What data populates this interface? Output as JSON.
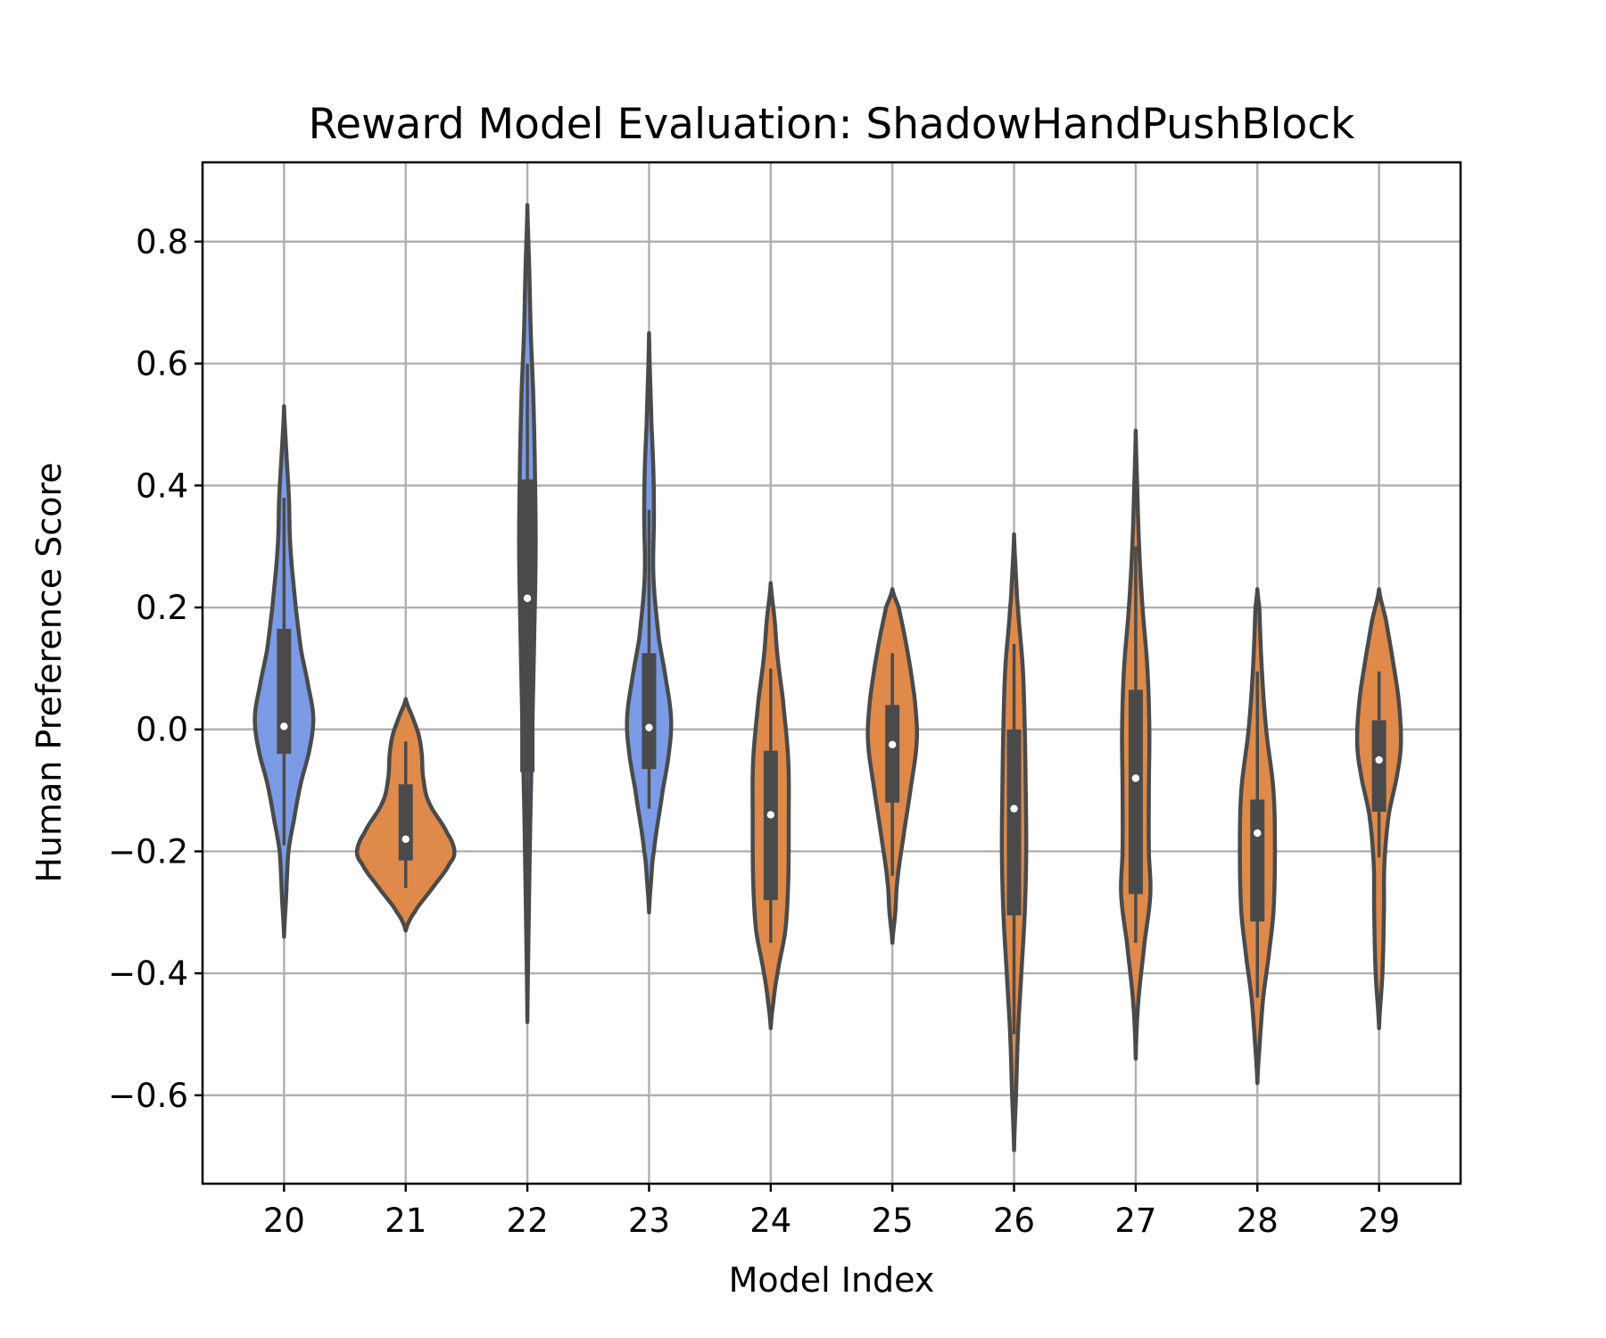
{
  "chart_data": {
    "type": "violin",
    "title": "Reward Model Evaluation: ShadowHandPushBlock",
    "xlabel": "Model Index",
    "ylabel": "Human Preference Score",
    "ylim": [
      -0.745,
      0.93
    ],
    "yticks": [
      -0.6,
      -0.4,
      -0.2,
      0.0,
      0.2,
      0.4,
      0.6,
      0.8
    ],
    "ytick_labels": [
      "−0.6",
      "−0.4",
      "−0.2",
      "0.0",
      "0.2",
      "0.4",
      "0.6",
      "0.8"
    ],
    "grid": true,
    "colors": {
      "blue": "#7b9be6",
      "orange": "#df8a4a",
      "inner": "#4a4a4a"
    },
    "categories": [
      "20",
      "21",
      "22",
      "23",
      "24",
      "25",
      "26",
      "27",
      "28",
      "29"
    ],
    "series": [
      {
        "category": "20",
        "color": "blue",
        "range": [
          -0.34,
          0.53
        ],
        "whisker": [
          -0.19,
          0.38
        ],
        "q1": -0.04,
        "median": 0.005,
        "q3": 0.165,
        "profile": [
          [
            -0.34,
            0.0
          ],
          [
            -0.28,
            0.04
          ],
          [
            -0.2,
            0.09
          ],
          [
            -0.15,
            0.2
          ],
          [
            -0.09,
            0.34
          ],
          [
            -0.03,
            0.53
          ],
          [
            0.02,
            0.6
          ],
          [
            0.07,
            0.5
          ],
          [
            0.13,
            0.35
          ],
          [
            0.2,
            0.24
          ],
          [
            0.3,
            0.13
          ],
          [
            0.38,
            0.1
          ],
          [
            0.45,
            0.05
          ],
          [
            0.53,
            0.0
          ]
        ]
      },
      {
        "category": "21",
        "color": "orange",
        "range": [
          -0.33,
          0.05
        ],
        "whisker": [
          -0.26,
          -0.02
        ],
        "q1": -0.215,
        "median": -0.18,
        "q3": -0.09,
        "profile": [
          [
            -0.33,
            0.0
          ],
          [
            -0.3,
            0.18
          ],
          [
            -0.26,
            0.55
          ],
          [
            -0.22,
            0.9
          ],
          [
            -0.2,
            1.0
          ],
          [
            -0.17,
            0.85
          ],
          [
            -0.12,
            0.48
          ],
          [
            -0.08,
            0.36
          ],
          [
            -0.04,
            0.33
          ],
          [
            -0.01,
            0.27
          ],
          [
            0.02,
            0.14
          ],
          [
            0.05,
            0.0
          ]
        ]
      },
      {
        "category": "22",
        "color": "blue",
        "range": [
          -0.48,
          0.86
        ],
        "whisker": [
          -0.23,
          0.6
        ],
        "q1": -0.07,
        "median": 0.215,
        "q3": 0.41,
        "profile": [
          [
            -0.48,
            0.0
          ],
          [
            -0.3,
            0.03
          ],
          [
            -0.15,
            0.06
          ],
          [
            0.0,
            0.1
          ],
          [
            0.15,
            0.14
          ],
          [
            0.3,
            0.17
          ],
          [
            0.45,
            0.15
          ],
          [
            0.55,
            0.12
          ],
          [
            0.65,
            0.07
          ],
          [
            0.75,
            0.04
          ],
          [
            0.86,
            0.0
          ]
        ]
      },
      {
        "category": "23",
        "color": "blue",
        "range": [
          -0.3,
          0.65
        ],
        "whisker": [
          -0.13,
          0.36
        ],
        "q1": -0.065,
        "median": 0.003,
        "q3": 0.125,
        "profile": [
          [
            -0.3,
            0.0
          ],
          [
            -0.25,
            0.04
          ],
          [
            -0.2,
            0.1
          ],
          [
            -0.1,
            0.28
          ],
          [
            -0.03,
            0.42
          ],
          [
            0.02,
            0.45
          ],
          [
            0.08,
            0.35
          ],
          [
            0.15,
            0.2
          ],
          [
            0.25,
            0.09
          ],
          [
            0.35,
            0.1
          ],
          [
            0.42,
            0.09
          ],
          [
            0.5,
            0.05
          ],
          [
            0.65,
            0.0
          ]
        ]
      },
      {
        "category": "24",
        "color": "orange",
        "range": [
          -0.49,
          0.24
        ],
        "whisker": [
          -0.35,
          0.1
        ],
        "q1": -0.28,
        "median": -0.14,
        "q3": -0.035,
        "profile": [
          [
            -0.49,
            0.0
          ],
          [
            -0.45,
            0.05
          ],
          [
            -0.4,
            0.14
          ],
          [
            -0.33,
            0.3
          ],
          [
            -0.25,
            0.36
          ],
          [
            -0.15,
            0.37
          ],
          [
            -0.05,
            0.36
          ],
          [
            0.05,
            0.25
          ],
          [
            0.12,
            0.14
          ],
          [
            0.18,
            0.08
          ],
          [
            0.24,
            0.0
          ]
        ]
      },
      {
        "category": "25",
        "color": "orange",
        "range": [
          -0.35,
          0.23
        ],
        "whisker": [
          -0.24,
          0.125
        ],
        "q1": -0.12,
        "median": -0.025,
        "q3": 0.04,
        "profile": [
          [
            -0.35,
            0.0
          ],
          [
            -0.3,
            0.06
          ],
          [
            -0.25,
            0.1
          ],
          [
            -0.18,
            0.22
          ],
          [
            -0.1,
            0.37
          ],
          [
            -0.02,
            0.5
          ],
          [
            0.04,
            0.47
          ],
          [
            0.1,
            0.37
          ],
          [
            0.15,
            0.26
          ],
          [
            0.2,
            0.13
          ],
          [
            0.23,
            0.0
          ]
        ]
      },
      {
        "category": "26",
        "color": "orange",
        "range": [
          -0.69,
          0.32
        ],
        "whisker": [
          -0.5,
          0.14
        ],
        "q1": -0.305,
        "median": -0.13,
        "q3": 0.0,
        "profile": [
          [
            -0.69,
            0.0
          ],
          [
            -0.6,
            0.04
          ],
          [
            -0.5,
            0.08
          ],
          [
            -0.4,
            0.15
          ],
          [
            -0.3,
            0.22
          ],
          [
            -0.2,
            0.25
          ],
          [
            -0.1,
            0.24
          ],
          [
            0.0,
            0.22
          ],
          [
            0.1,
            0.18
          ],
          [
            0.2,
            0.08
          ],
          [
            0.25,
            0.04
          ],
          [
            0.32,
            0.0
          ]
        ]
      },
      {
        "category": "27",
        "color": "orange",
        "range": [
          -0.54,
          0.49
        ],
        "whisker": [
          -0.35,
          0.3
        ],
        "q1": -0.27,
        "median": -0.08,
        "q3": 0.065,
        "profile": [
          [
            -0.54,
            0.0
          ],
          [
            -0.45,
            0.05
          ],
          [
            -0.35,
            0.18
          ],
          [
            -0.27,
            0.3
          ],
          [
            -0.2,
            0.27
          ],
          [
            -0.1,
            0.27
          ],
          [
            0.0,
            0.28
          ],
          [
            0.1,
            0.24
          ],
          [
            0.2,
            0.14
          ],
          [
            0.3,
            0.07
          ],
          [
            0.4,
            0.03
          ],
          [
            0.49,
            0.0
          ]
        ]
      },
      {
        "category": "28",
        "color": "orange",
        "range": [
          -0.58,
          0.23
        ],
        "whisker": [
          -0.44,
          0.095
        ],
        "q1": -0.315,
        "median": -0.17,
        "q3": -0.115,
        "profile": [
          [
            -0.58,
            0.0
          ],
          [
            -0.5,
            0.06
          ],
          [
            -0.44,
            0.12
          ],
          [
            -0.38,
            0.22
          ],
          [
            -0.3,
            0.33
          ],
          [
            -0.2,
            0.36
          ],
          [
            -0.1,
            0.33
          ],
          [
            0.0,
            0.18
          ],
          [
            0.1,
            0.09
          ],
          [
            0.2,
            0.04
          ],
          [
            0.23,
            0.0
          ]
        ]
      },
      {
        "category": "29",
        "color": "orange",
        "range": [
          -0.49,
          0.23
        ],
        "whisker": [
          -0.21,
          0.095
        ],
        "q1": -0.135,
        "median": -0.05,
        "q3": 0.015,
        "profile": [
          [
            -0.49,
            0.0
          ],
          [
            -0.4,
            0.07
          ],
          [
            -0.3,
            0.1
          ],
          [
            -0.22,
            0.11
          ],
          [
            -0.14,
            0.2
          ],
          [
            -0.07,
            0.38
          ],
          [
            -0.02,
            0.45
          ],
          [
            0.05,
            0.4
          ],
          [
            0.12,
            0.27
          ],
          [
            0.18,
            0.14
          ],
          [
            0.23,
            0.0
          ]
        ]
      }
    ]
  }
}
